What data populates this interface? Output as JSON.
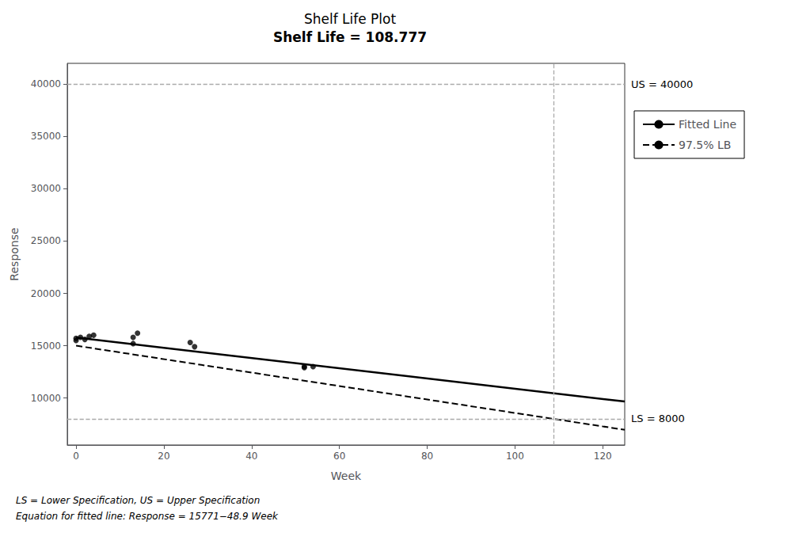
{
  "chart_data": {
    "type": "line",
    "title": "Shelf Life Plot",
    "subtitle": "Shelf Life = 108.777",
    "x_label": "Week",
    "y_label": "Response",
    "xlim": [
      -2,
      125
    ],
    "ylim": [
      5500,
      42000
    ],
    "xticks": [
      0,
      20,
      40,
      60,
      80,
      100,
      120
    ],
    "yticks": [
      10000,
      15000,
      20000,
      25000,
      30000,
      35000,
      40000
    ],
    "grid": false,
    "legend": "right",
    "series": [
      {
        "name": "Fitted Line",
        "type": "line",
        "color": "#000000",
        "line_style": "solid",
        "x": [
          0,
          125
        ],
        "values": [
          15771,
          9658.5
        ]
      },
      {
        "name": "97.5% LB",
        "type": "line",
        "color": "#000000",
        "line_style": "dashed",
        "x": [
          0,
          108.777,
          125
        ],
        "values": [
          15000,
          8000,
          6956.02
        ]
      },
      {
        "type": "scatter",
        "color": "#000000",
        "marker": "circle",
        "x": [
          0,
          0,
          1,
          2,
          3,
          4,
          13,
          13,
          14,
          26,
          27,
          52,
          52,
          54
        ],
        "values": [
          15500,
          15700,
          15800,
          15600,
          15900,
          16000,
          15200,
          15800,
          16200,
          15300,
          14900,
          13000,
          12900,
          13000
        ]
      }
    ],
    "annotations": [
      {
        "text": "US = 40000",
        "y": 40000,
        "color": "#aaaaaa",
        "line_style": "dashed"
      },
      {
        "text": "LS = 8000",
        "y": 8000,
        "color": "#aaaaaa",
        "line_style": "dashed"
      },
      {
        "x": 108.777,
        "color": "#aaaaaa",
        "line_style": "dashed"
      }
    ],
    "footer": [
      "LS = Lower Specification, US = Upper Specification",
      "Equation for fitted line: Response = 15771−48.9 Week"
    ]
  }
}
